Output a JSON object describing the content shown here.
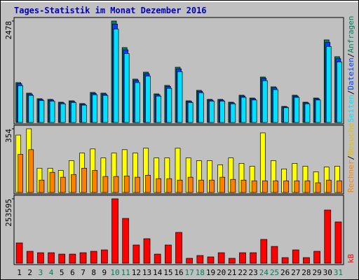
{
  "title": "Tages-Statistik im Monat Dezember 2016",
  "categories": [
    "1",
    "2",
    "3",
    "4",
    "5",
    "6",
    "7",
    "8",
    "9",
    "10",
    "11",
    "12",
    "13",
    "14",
    "15",
    "16",
    "17",
    "18",
    "19",
    "20",
    "21",
    "22",
    "23",
    "24",
    "25",
    "26",
    "27",
    "28",
    "29",
    "30",
    "31"
  ],
  "category_colors": [
    "#000000",
    "#000000",
    "#00805c",
    "#00805c",
    "#000000",
    "#000000",
    "#000000",
    "#000000",
    "#000000",
    "#00805c",
    "#00805c",
    "#000000",
    "#000000",
    "#000000",
    "#000000",
    "#000000",
    "#00805c",
    "#00805c",
    "#000000",
    "#000000",
    "#000000",
    "#000000",
    "#000000",
    "#00805c",
    "#00805c",
    "#000000",
    "#000000",
    "#000000",
    "#000000",
    "#000000",
    "#00805c"
  ],
  "legend_separator": "/",
  "chart_data": [
    {
      "type": "bar",
      "ylim": [
        0,
        2478
      ],
      "yticks": [
        2478
      ],
      "series": [
        {
          "name": "Anfragen",
          "color": "#00805c",
          "values": [
            975,
            718,
            581,
            565,
            496,
            530,
            462,
            735,
            718,
            2478,
            1829,
            1060,
            1230,
            700,
            906,
            1350,
            530,
            786,
            565,
            565,
            496,
            667,
            598,
            1111,
            872,
            393,
            667,
            496,
            598,
            2017,
            1607
          ]
        },
        {
          "name": "Dateien",
          "color": "#0040ff",
          "values": [
            946,
            696,
            564,
            548,
            481,
            514,
            448,
            713,
            696,
            2404,
            1774,
            1028,
            1193,
            679,
            879,
            1310,
            514,
            762,
            548,
            548,
            481,
            647,
            580,
            1078,
            846,
            381,
            647,
            481,
            580,
            1956,
            1559
          ]
        },
        {
          "name": "Seiten",
          "color": "#00e0ff",
          "values": [
            897,
            661,
            535,
            520,
            456,
            488,
            425,
            676,
            661,
            2280,
            1683,
            975,
            1132,
            644,
            834,
            1242,
            488,
            723,
            520,
            520,
            456,
            614,
            550,
            1022,
            802,
            362,
            614,
            456,
            550,
            1856,
            1478
          ]
        }
      ]
    },
    {
      "type": "bar",
      "ylim": [
        0,
        354
      ],
      "yticks": [
        354
      ],
      "series": [
        {
          "name": "Besuche",
          "color": "#ffff00",
          "values": [
            319,
            354,
            135,
            135,
            123,
            177,
            219,
            242,
            192,
            219,
            238,
            219,
            246,
            192,
            192,
            246,
            192,
            177,
            177,
            154,
            192,
            162,
            146,
            331,
            177,
            131,
            162,
            146,
            115,
            142,
            146
          ]
        },
        {
          "name": "Rechner",
          "color": "#ff8000",
          "values": [
            212,
            238,
            69,
            112,
            85,
            100,
            135,
            123,
            89,
            89,
            92,
            85,
            96,
            77,
            77,
            69,
            85,
            69,
            69,
            85,
            73,
            69,
            65,
            65,
            65,
            65,
            65,
            65,
            54,
            69,
            65
          ]
        }
      ]
    },
    {
      "type": "bar",
      "ylim": [
        0,
        253595
      ],
      "yticks": [
        253595
      ],
      "series": [
        {
          "name": "kB",
          "color": "#ff0000",
          "values": [
            79900,
            46900,
            41300,
            41300,
            35800,
            35800,
            41300,
            46900,
            52400,
            253595,
            176400,
            71700,
            96500,
            35800,
            71700,
            121300,
            19300,
            30300,
            24800,
            41300,
            19300,
            41300,
            41300,
            93700,
            66100,
            22000,
            52400,
            22000,
            46900,
            209400,
            162600
          ]
        }
      ]
    }
  ]
}
